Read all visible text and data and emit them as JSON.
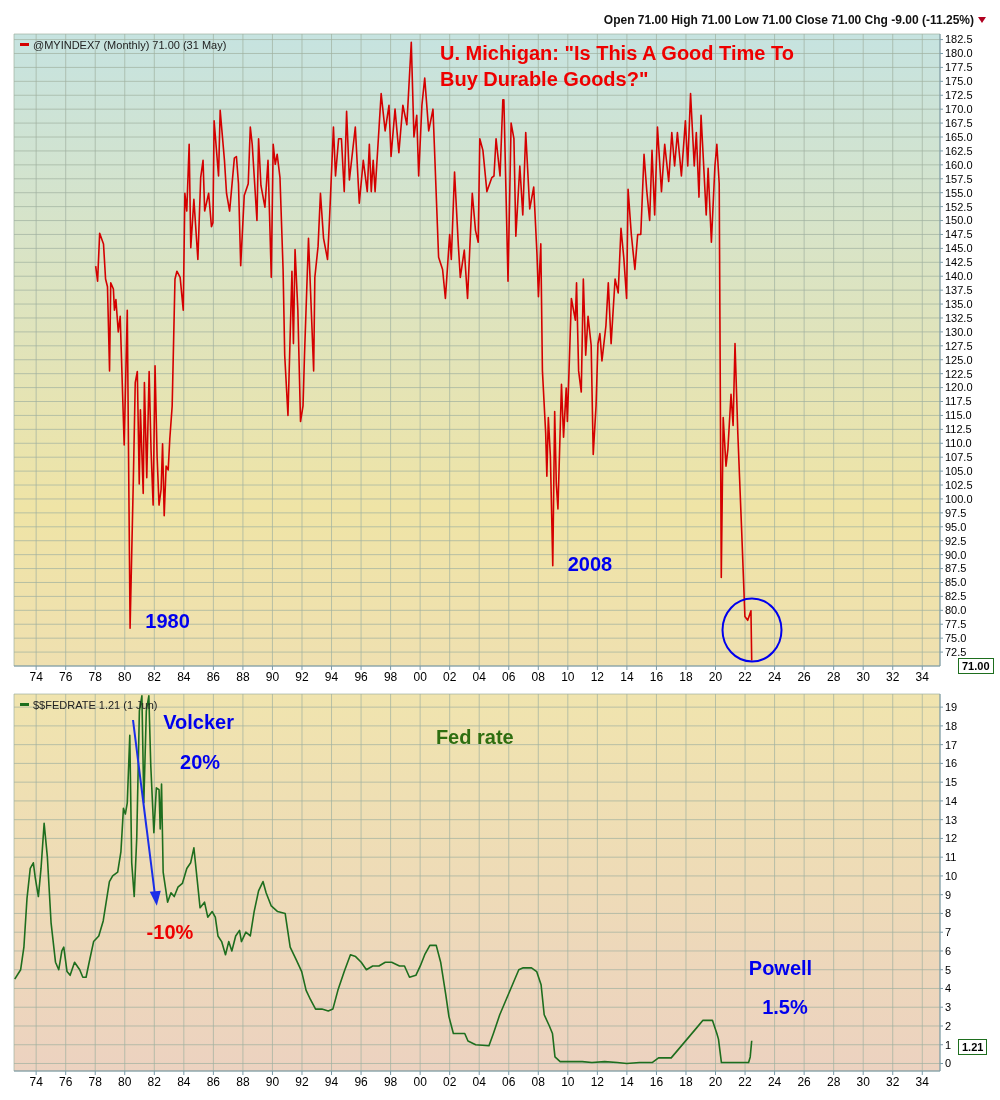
{
  "chart_data": [
    {
      "type": "line",
      "title": "U. Michigan: \"Is This A Good Time To Buy Durable Goods?\"",
      "x": [
        1978.03,
        1978.16,
        1978.3,
        1978.56,
        1978.7,
        1978.83,
        1978.97,
        1979.05,
        1979.23,
        1979.3,
        1979.4,
        1979.56,
        1979.69,
        1979.96,
        1980.17,
        1980.36,
        1980.58,
        1980.71,
        1980.85,
        1980.98,
        1981.06,
        1981.25,
        1981.33,
        1981.49,
        1981.65,
        1981.78,
        1981.92,
        1982.05,
        1982.19,
        1982.32,
        1982.46,
        1982.56,
        1982.67,
        1982.8,
        1982.94,
        1983.05,
        1983.21,
        1983.4,
        1983.53,
        1983.75,
        1983.96,
        1984.07,
        1984.2,
        1984.36,
        1984.47,
        1984.68,
        1984.95,
        1985.14,
        1985.3,
        1985.41,
        1985.68,
        1985.87,
        1985.97,
        1986.05,
        1986.35,
        1986.46,
        1986.75,
        1986.89,
        1987.1,
        1987.42,
        1987.56,
        1987.7,
        1987.85,
        1988.09,
        1988.36,
        1988.5,
        1988.63,
        1988.95,
        1989.06,
        1989.22,
        1989.49,
        1989.7,
        1989.92,
        1990.05,
        1990.19,
        1990.32,
        1990.51,
        1990.72,
        1990.83,
        1991.05,
        1991.32,
        1991.42,
        1991.53,
        1991.72,
        1991.9,
        1992.07,
        1992.17,
        1992.44,
        1992.79,
        1992.87,
        1993.09,
        1993.25,
        1993.46,
        1993.73,
        1993.87,
        1994.13,
        1994.27,
        1994.48,
        1994.67,
        1994.86,
        1995.02,
        1995.21,
        1995.61,
        1995.88,
        1996.15,
        1996.42,
        1996.56,
        1996.69,
        1996.82,
        1996.95,
        1997.22,
        1997.36,
        1997.63,
        1997.89,
        1998.03,
        1998.3,
        1998.56,
        1998.83,
        1999.1,
        1999.4,
        1999.58,
        1999.77,
        1999.9,
        2000.12,
        2000.31,
        2000.58,
        2000.87,
        2001.25,
        2001.52,
        2001.71,
        2002.0,
        2002.11,
        2002.33,
        2002.59,
        2002.72,
        2002.99,
        2003.21,
        2003.53,
        2003.75,
        2003.93,
        2004.04,
        2004.25,
        2004.52,
        2004.85,
        2005.0,
        2005.14,
        2005.41,
        2005.6,
        2005.67,
        2005.95,
        2006.16,
        2006.35,
        2006.48,
        2006.75,
        2006.95,
        2007.15,
        2007.42,
        2007.69,
        2007.91,
        2008.01,
        2008.17,
        2008.28,
        2008.5,
        2008.58,
        2008.68,
        2008.82,
        2008.98,
        2009.11,
        2009.22,
        2009.33,
        2009.57,
        2009.71,
        2009.89,
        2009.97,
        2010.24,
        2010.51,
        2010.59,
        2010.73,
        2010.91,
        2011.05,
        2011.21,
        2011.37,
        2011.58,
        2011.72,
        2011.91,
        2012.04,
        2012.17,
        2012.31,
        2012.58,
        2012.74,
        2012.93,
        2013.2,
        2013.41,
        2013.6,
        2013.79,
        2013.98,
        2014.08,
        2014.3,
        2014.54,
        2014.73,
        2014.94,
        2015.16,
        2015.35,
        2015.54,
        2015.7,
        2015.88,
        2016.07,
        2016.34,
        2016.56,
        2016.83,
        2017.04,
        2017.23,
        2017.42,
        2017.69,
        2017.96,
        2018.12,
        2018.31,
        2018.56,
        2018.7,
        2018.88,
        2019.02,
        2019.18,
        2019.37,
        2019.5,
        2019.72,
        2019.96,
        2020.09,
        2020.25,
        2020.39,
        2020.52,
        2020.71,
        2020.84,
        2021.05,
        2021.19,
        2021.32,
        2021.51,
        2021.78,
        2021.99,
        2022.18,
        2022.4,
        2022.45
      ],
      "series": [
        {
          "name": "@MYINDEX7 (Monthly) 71.00 (31 May)",
          "color": "#d40000",
          "values": [
            141.8,
            139.1,
            147.7,
            145.8,
            139.5,
            138.1,
            123,
            138.8,
            137.7,
            133.9,
            135.8,
            130,
            132.8,
            109.7,
            133.9,
            76.8,
            103.4,
            120.9,
            122.9,
            102.7,
            116,
            101,
            120.9,
            103.8,
            122.9,
            108.7,
            98.9,
            123.9,
            107.6,
            98.9,
            101.7,
            109.9,
            97,
            105.9,
            105.2,
            110.8,
            116.7,
            139.5,
            140.9,
            139.8,
            133.9,
            154.9,
            151.7,
            163.7,
            145.1,
            153.8,
            143,
            157.7,
            160.8,
            151.7,
            154.9,
            148.9,
            149.6,
            167.9,
            158,
            169.8,
            160.8,
            154.9,
            151.7,
            161.2,
            161.5,
            156.6,
            141.9,
            154.5,
            156.6,
            166.8,
            163.7,
            150,
            164.7,
            156.3,
            152.4,
            160.8,
            139.8,
            163.7,
            160.1,
            161.9,
            157.7,
            141.2,
            125.8,
            115,
            140.9,
            127.9,
            144.8,
            133.9,
            113.9,
            116.7,
            125.8,
            146.8,
            123,
            139.8,
            145.4,
            154.9,
            146.8,
            143,
            150.7,
            166.8,
            158,
            164.7,
            164.7,
            155.2,
            169.6,
            157.3,
            166.8,
            153.1,
            160.8,
            155.2,
            163.7,
            155.2,
            160.8,
            155.2,
            166.8,
            172.8,
            166.1,
            170.7,
            161.5,
            170,
            162.2,
            170.7,
            167.2,
            182,
            165,
            168.9,
            158,
            170.7,
            175.6,
            166.1,
            170,
            143.4,
            141.2,
            136,
            147.5,
            143,
            158.7,
            145.4,
            139.8,
            144.7,
            136,
            154.9,
            148.2,
            146.1,
            164.7,
            162.6,
            155.2,
            157.7,
            158,
            164.7,
            158,
            171.7,
            171.7,
            139.1,
            167.5,
            164.7,
            147.2,
            159.8,
            151,
            165.8,
            152.1,
            156,
            144,
            136.3,
            145.8,
            123,
            111.8,
            104.1,
            114.6,
            107.6,
            88,
            115.7,
            102.7,
            98.2,
            120.6,
            111.1,
            119.9,
            113.9,
            136,
            132.1,
            138.8,
            123,
            119.2,
            139.5,
            125.8,
            132.8,
            127.6,
            108,
            116.7,
            127.9,
            129.7,
            124.8,
            131.1,
            138.8,
            127.9,
            139.5,
            137,
            148.6,
            143.3,
            136,
            155.6,
            147.5,
            141.2,
            147.5,
            147.5,
            161.9,
            155.2,
            150,
            162.6,
            151,
            166.8,
            155.2,
            163.7,
            157,
            165.8,
            159.8,
            165.8,
            158,
            167.9,
            159.8,
            172.8,
            159.8,
            165.8,
            154.2,
            168.9,
            160.8,
            151,
            159.4,
            146.1,
            159.8,
            163.7,
            156.6,
            85.9,
            114.6,
            105.9,
            109,
            118.8,
            113.2,
            127.9,
            111.8,
            93.6,
            78.9,
            78.2,
            79.9,
            71
          ]
        }
      ],
      "xlim": [
        1972.5,
        2035.2
      ],
      "xticks": [
        {
          "value": 1974,
          "label": "74"
        },
        {
          "value": 1976,
          "label": "76"
        },
        {
          "value": 1978,
          "label": "78"
        },
        {
          "value": 1980,
          "label": "80"
        },
        {
          "value": 1982,
          "label": "82"
        },
        {
          "value": 1984,
          "label": "84"
        },
        {
          "value": 1986,
          "label": "86"
        },
        {
          "value": 1988,
          "label": "88"
        },
        {
          "value": 1990,
          "label": "90"
        },
        {
          "value": 1992,
          "label": "92"
        },
        {
          "value": 1994,
          "label": "94"
        },
        {
          "value": 1996,
          "label": "96"
        },
        {
          "value": 1998,
          "label": "98"
        },
        {
          "value": 2000,
          "label": "00"
        },
        {
          "value": 2002,
          "label": "02"
        },
        {
          "value": 2004,
          "label": "04"
        },
        {
          "value": 2006,
          "label": "06"
        },
        {
          "value": 2008,
          "label": "08"
        },
        {
          "value": 2010,
          "label": "10"
        },
        {
          "value": 2012,
          "label": "12"
        },
        {
          "value": 2014,
          "label": "14"
        },
        {
          "value": 2016,
          "label": "16"
        },
        {
          "value": 2018,
          "label": "18"
        },
        {
          "value": 2020,
          "label": "20"
        },
        {
          "value": 2022,
          "label": "22"
        },
        {
          "value": 2024,
          "label": "24"
        },
        {
          "value": 2026,
          "label": "26"
        },
        {
          "value": 2028,
          "label": "28"
        },
        {
          "value": 2030,
          "label": "30"
        },
        {
          "value": 2032,
          "label": "32"
        },
        {
          "value": 2034,
          "label": "34"
        }
      ],
      "ylim": [
        70,
        183.5
      ],
      "yticks": [
        72.5,
        {
          "value": 75,
          "label": "75.0"
        },
        77.5,
        {
          "value": 80,
          "label": "80.0"
        },
        82.5,
        {
          "value": 85,
          "label": "85.0"
        },
        87.5,
        {
          "value": 90,
          "label": "90.0"
        },
        92.5,
        {
          "value": 95,
          "label": "95.0"
        },
        97.5,
        {
          "value": 100,
          "label": "100.0"
        },
        102.5,
        {
          "value": 105,
          "label": "105.0"
        },
        107.5,
        {
          "value": 110,
          "label": "110.0"
        },
        112.5,
        {
          "value": 115,
          "label": "115.0"
        },
        117.5,
        {
          "value": 120,
          "label": "120.0"
        },
        122.5,
        {
          "value": 125,
          "label": "125.0"
        },
        127.5,
        {
          "value": 130,
          "label": "130.0"
        },
        132.5,
        {
          "value": 135,
          "label": "135.0"
        },
        137.5,
        {
          "value": 140,
          "label": "140.0"
        },
        142.5,
        {
          "value": 145,
          "label": "145.0"
        },
        147.5,
        {
          "value": 150,
          "label": "150.0"
        },
        152.5,
        {
          "value": 155,
          "label": "155.0"
        },
        157.5,
        {
          "value": 160,
          "label": "160.0"
        },
        162.5,
        {
          "value": 165,
          "label": "165.0"
        },
        167.5,
        {
          "value": 170,
          "label": "170.0"
        },
        172.5,
        {
          "value": 175,
          "label": "175.0"
        },
        177.5,
        {
          "value": 180,
          "label": "180.0"
        },
        182.5
      ],
      "grid": true,
      "legend": "top left",
      "annotations": [
        "Open 71.00 High 71.00 Low 71.00 Close 71.00 Chg -9.00 (-11.25%)",
        "1980",
        "2008",
        "71.00"
      ]
    },
    {
      "type": "line",
      "x": [
        1972.55,
        1972.95,
        1973.17,
        1973.38,
        1973.6,
        1973.81,
        1973.94,
        1974.15,
        1974.33,
        1974.54,
        1974.76,
        1975.01,
        1975.31,
        1975.53,
        1975.74,
        1975.87,
        1976.09,
        1976.3,
        1976.6,
        1976.95,
        1977.16,
        1977.38,
        1977.59,
        1977.89,
        1978.24,
        1978.54,
        1978.96,
        1979.18,
        1979.52,
        1979.74,
        1979.91,
        1980.04,
        1980.17,
        1980.34,
        1980.47,
        1980.64,
        1980.81,
        1980.99,
        1981.16,
        1981.29,
        1981.46,
        1981.63,
        1981.76,
        1981.97,
        1982.14,
        1982.32,
        1982.4,
        1982.49,
        1982.6,
        1982.9,
        1983.13,
        1983.35,
        1983.6,
        1983.9,
        1984.2,
        1984.46,
        1984.68,
        1984.89,
        1985.1,
        1985.4,
        1985.62,
        1985.92,
        1986.13,
        1986.31,
        1986.56,
        1986.82,
        1987.04,
        1987.25,
        1987.51,
        1987.77,
        1987.9,
        1988.2,
        1988.5,
        1988.76,
        1989.06,
        1989.36,
        1989.57,
        1989.92,
        1990.35,
        1990.86,
        1991.2,
        1991.63,
        1991.98,
        1992.28,
        1992.58,
        1992.92,
        1993.35,
        1993.78,
        1994.09,
        1994.43,
        1994.86,
        1995.28,
        1995.63,
        1996.01,
        1996.36,
        1996.79,
        1997.21,
        1997.64,
        1998.07,
        1998.6,
        1998.94,
        1999.28,
        1999.71,
        2000.01,
        2000.31,
        2000.66,
        2001.09,
        2001.39,
        2001.73,
        2001.95,
        2002.25,
        2002.59,
        2003.02,
        2003.24,
        2003.76,
        2004.66,
        2004.96,
        2005.39,
        2005.82,
        2006.25,
        2006.68,
        2006.98,
        2007.54,
        2007.89,
        2008.19,
        2008.4,
        2008.75,
        2008.96,
        2009.13,
        2009.48,
        2010.12,
        2010.98,
        2011.63,
        2012.49,
        2013.35,
        2013.99,
        2014.85,
        2015.71,
        2016.14,
        2017.0,
        2017.43,
        2017.86,
        2018.29,
        2018.72,
        2019.15,
        2019.79,
        2020.09,
        2020.2,
        2020.4,
        2021.17,
        2022.24,
        2022.35,
        2022.45
      ],
      "series": [
        {
          "name": "$$FEDRATE 1.21 (1 Jun)",
          "color": "#1e6e1e",
          "values": [
            4.5,
            5.0,
            6.2,
            8.8,
            10.4,
            10.7,
            9.9,
            8.9,
            10.4,
            12.8,
            11.0,
            7.5,
            5.4,
            5.0,
            6.0,
            6.2,
            4.9,
            4.7,
            5.4,
            5.0,
            4.6,
            4.6,
            5.4,
            6.5,
            6.8,
            7.6,
            9.7,
            10.0,
            10.2,
            11.3,
            13.6,
            13.3,
            13.9,
            17.5,
            10.7,
            8.9,
            12.0,
            18.8,
            19.6,
            13.9,
            18.8,
            19.6,
            15.9,
            12.3,
            14.7,
            14.6,
            12.5,
            14.9,
            10.2,
            8.6,
            9.1,
            8.9,
            9.4,
            9.6,
            10.4,
            10.7,
            11.5,
            9.9,
            8.3,
            8.6,
            7.8,
            8.1,
            7.8,
            6.8,
            6.5,
            5.8,
            6.5,
            6.0,
            6.8,
            7.1,
            6.5,
            7.0,
            6.8,
            8.1,
            9.2,
            9.7,
            9.1,
            8.4,
            8.1,
            8.0,
            6.2,
            5.5,
            4.9,
            3.9,
            3.4,
            2.9,
            2.9,
            2.8,
            2.9,
            3.9,
            4.9,
            5.8,
            5.7,
            5.4,
            5.0,
            5.2,
            5.2,
            5.4,
            5.4,
            5.2,
            5.2,
            4.6,
            4.7,
            5.2,
            5.8,
            6.3,
            6.3,
            5.4,
            3.7,
            2.5,
            1.6,
            1.6,
            1.6,
            1.2,
            1.0,
            0.95,
            1.6,
            2.6,
            3.4,
            4.2,
            5.0,
            5.1,
            5.1,
            4.9,
            4.2,
            2.6,
            2.0,
            1.6,
            0.35,
            0.1,
            0.1,
            0.1,
            0.05,
            0.1,
            0.05,
            0.0,
            0.05,
            0.05,
            0.3,
            0.3,
            0.7,
            1.1,
            1.5,
            1.9,
            2.3,
            2.3,
            1.6,
            1.3,
            0.05,
            0.05,
            0.05,
            0.35,
            1.21
          ]
        }
      ],
      "xlim": [
        1972.5,
        2035.2
      ],
      "xticks": [
        {
          "value": 1974,
          "label": "74"
        },
        {
          "value": 1976,
          "label": "76"
        },
        {
          "value": 1978,
          "label": "78"
        },
        {
          "value": 1980,
          "label": "80"
        },
        {
          "value": 1982,
          "label": "82"
        },
        {
          "value": 1984,
          "label": "84"
        },
        {
          "value": 1986,
          "label": "86"
        },
        {
          "value": 1988,
          "label": "88"
        },
        {
          "value": 1990,
          "label": "90"
        },
        {
          "value": 1992,
          "label": "92"
        },
        {
          "value": 1994,
          "label": "94"
        },
        {
          "value": 1996,
          "label": "96"
        },
        {
          "value": 1998,
          "label": "98"
        },
        {
          "value": 2000,
          "label": "00"
        },
        {
          "value": 2002,
          "label": "02"
        },
        {
          "value": 2004,
          "label": "04"
        },
        {
          "value": 2006,
          "label": "06"
        },
        {
          "value": 2008,
          "label": "08"
        },
        {
          "value": 2010,
          "label": "10"
        },
        {
          "value": 2012,
          "label": "12"
        },
        {
          "value": 2014,
          "label": "14"
        },
        {
          "value": 2016,
          "label": "16"
        },
        {
          "value": 2018,
          "label": "18"
        },
        {
          "value": 2020,
          "label": "20"
        },
        {
          "value": 2022,
          "label": "22"
        },
        {
          "value": 2024,
          "label": "24"
        },
        {
          "value": 2026,
          "label": "26"
        },
        {
          "value": 2028,
          "label": "28"
        },
        {
          "value": 2030,
          "label": "30"
        },
        {
          "value": 2032,
          "label": "32"
        },
        {
          "value": 2034,
          "label": "34"
        }
      ],
      "ylim": [
        -0.4,
        19.7
      ],
      "yticks": [
        0,
        1,
        2,
        3,
        4,
        5,
        6,
        7,
        8,
        9,
        10,
        11,
        12,
        13,
        14,
        15,
        16,
        17,
        18,
        19
      ],
      "grid": true,
      "legend": "top left",
      "annotations": [
        "Volcker",
        "20%",
        "-10%",
        "Fed rate",
        "Powell",
        "1.5%",
        "1.21"
      ]
    }
  ]
}
